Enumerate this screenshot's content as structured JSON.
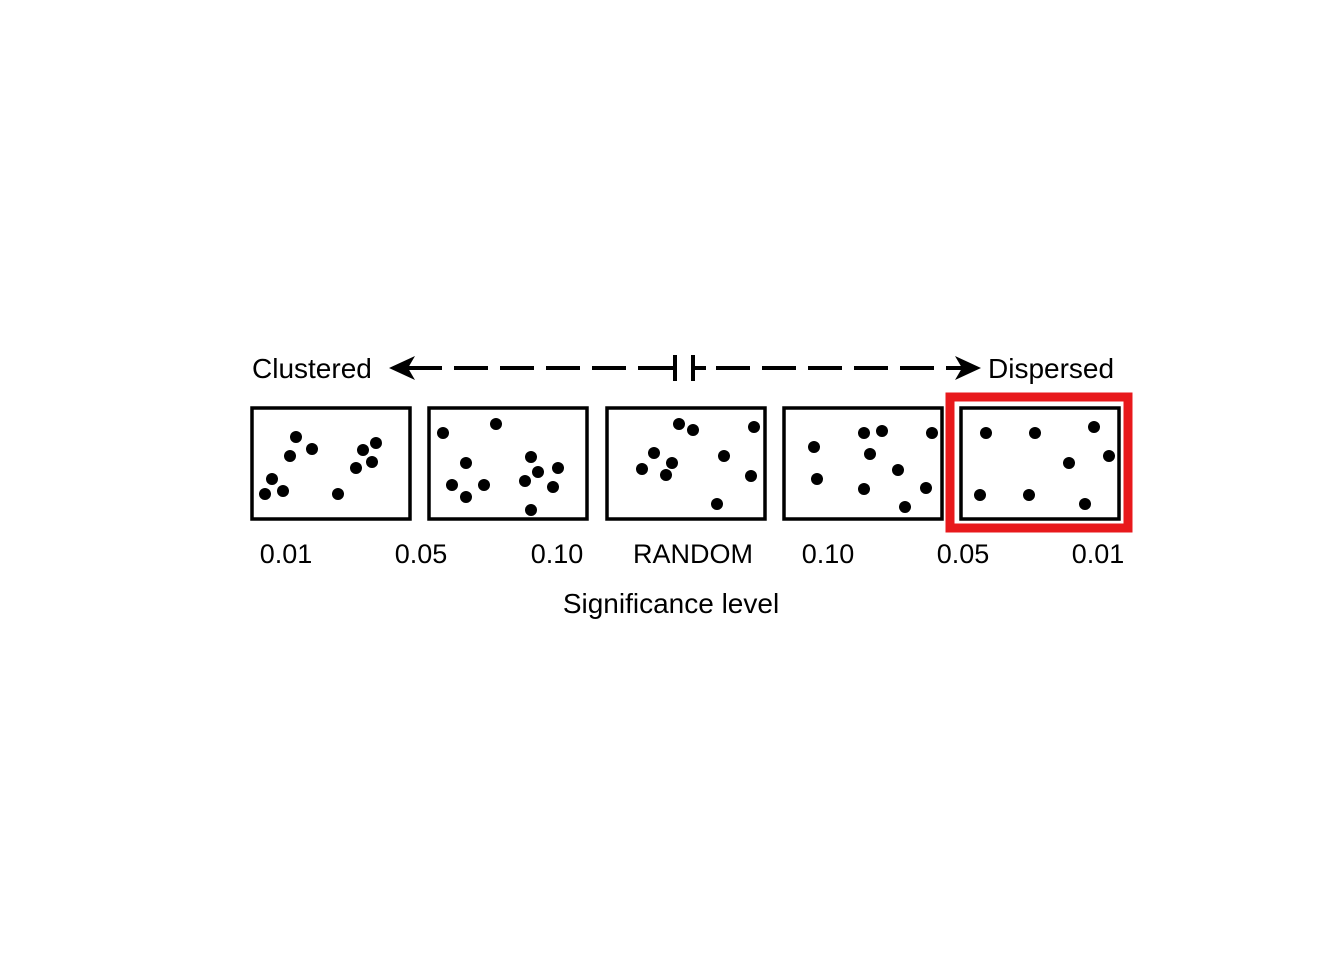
{
  "labels": {
    "left_end": "Clustered",
    "right_end": "Dispersed",
    "axis_title": "Significance level"
  },
  "tick_labels": [
    "0.01",
    "0.05",
    "0.10",
    "RANDOM",
    "0.10",
    "0.05",
    "0.01"
  ],
  "colors": {
    "ink": "#000000",
    "highlight": "#e8191c",
    "background": "#ffffff"
  },
  "panels": [
    {
      "name": "clustered-0.01",
      "highlighted": false
    },
    {
      "name": "clustered-0.05",
      "highlighted": false
    },
    {
      "name": "random",
      "highlighted": false
    },
    {
      "name": "dispersed-0.05",
      "highlighted": false
    },
    {
      "name": "dispersed-0.01",
      "highlighted": true
    }
  ]
}
